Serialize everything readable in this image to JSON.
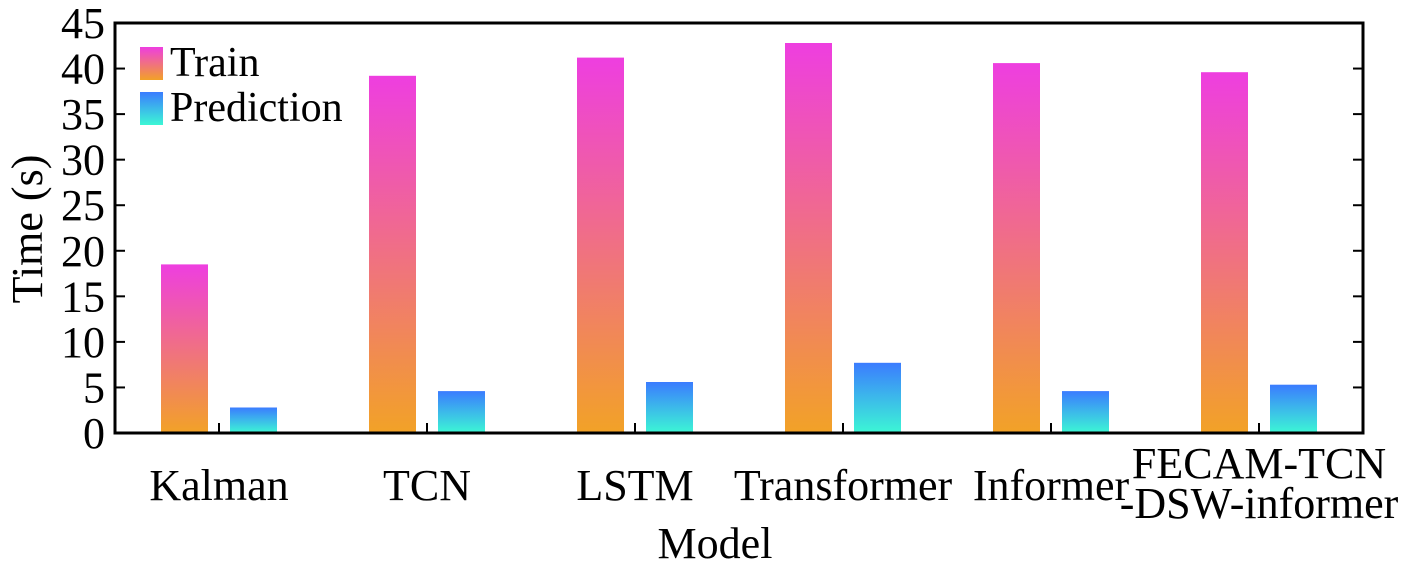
{
  "chart_data": {
    "type": "bar",
    "xlabel": "Model",
    "ylabel": "Time (s)",
    "ylim": [
      0,
      45
    ],
    "yticks": [
      0,
      5,
      10,
      15,
      20,
      25,
      30,
      35,
      40,
      45
    ],
    "categories": [
      [
        "Kalman"
      ],
      [
        "TCN"
      ],
      [
        "LSTM"
      ],
      [
        "Transformer"
      ],
      [
        "Informer"
      ],
      [
        "FECAM-TCN",
        "-DSW-informer"
      ]
    ],
    "series": [
      {
        "name": "Train",
        "values": [
          18.5,
          39.2,
          41.2,
          42.8,
          40.6,
          39.6
        ],
        "gradient_top": "#ee3ee0",
        "gradient_bottom": "#f2a227"
      },
      {
        "name": "Prediction",
        "values": [
          2.8,
          4.6,
          5.6,
          7.7,
          4.6,
          5.3
        ],
        "gradient_top": "#3b7cff",
        "gradient_bottom": "#3cf7d5"
      }
    ],
    "legend_position": "top-left",
    "grid": false
  }
}
